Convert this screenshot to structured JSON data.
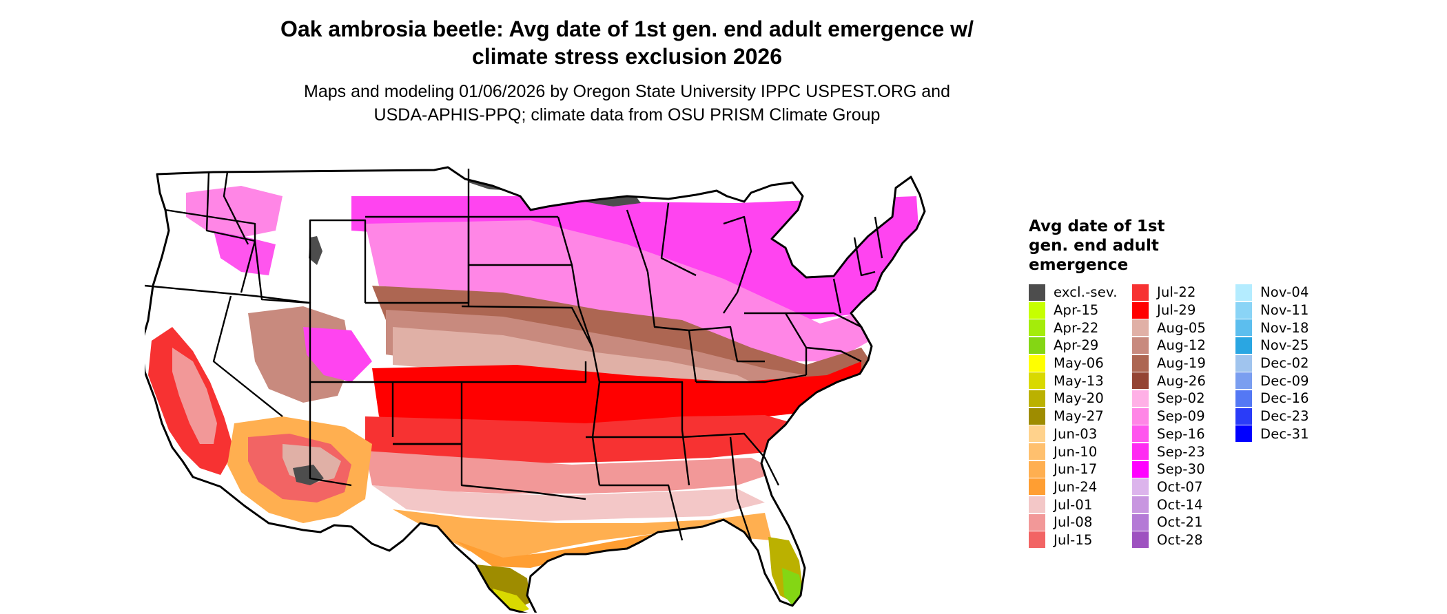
{
  "title": "Oak ambrosia beetle: Avg date of 1st gen. end adult emergence w/\nclimate stress exclusion 2026",
  "subtitle": "Maps and modeling 01/06/2026 by Oregon State University IPPC USPEST.ORG and\nUSDA-APHIS-PPQ; climate data from OSU PRISM Climate Group",
  "map": {
    "region": "Contiguous United States",
    "boundaries": "state outlines",
    "colors": {
      "excluded": "#4d4d4d",
      "no_data": "#ffffff",
      "outline": "#000000"
    }
  },
  "legend": {
    "title": "Avg date of 1st gen. end adult emergence",
    "columns": [
      [
        {
          "label": "excl.-sev.",
          "color": "#4d4d4d"
        },
        {
          "label": "Apr-15",
          "color": "#c6ff00"
        },
        {
          "label": "Apr-22",
          "color": "#a4ec0a"
        },
        {
          "label": "Apr-29",
          "color": "#84d614"
        },
        {
          "label": "May-06",
          "color": "#ffff00"
        },
        {
          "label": "May-13",
          "color": "#d9d900"
        },
        {
          "label": "May-20",
          "color": "#bbb100"
        },
        {
          "label": "May-27",
          "color": "#9e8c00"
        },
        {
          "label": "Jun-03",
          "color": "#ffd28c"
        },
        {
          "label": "Jun-10",
          "color": "#ffc06e"
        },
        {
          "label": "Jun-17",
          "color": "#ffaf50"
        },
        {
          "label": "Jun-24",
          "color": "#ff9e32"
        },
        {
          "label": "Jul-01",
          "color": "#f3c7c7"
        },
        {
          "label": "Jul-08",
          "color": "#f29898"
        },
        {
          "label": "Jul-15",
          "color": "#f26464"
        }
      ],
      [
        {
          "label": "Jul-22",
          "color": "#f73232"
        },
        {
          "label": "Jul-29",
          "color": "#ff0000"
        },
        {
          "label": "Aug-05",
          "color": "#e0b0a6"
        },
        {
          "label": "Aug-12",
          "color": "#c88a7e"
        },
        {
          "label": "Aug-19",
          "color": "#ad6652"
        },
        {
          "label": "Aug-26",
          "color": "#944433"
        },
        {
          "label": "Sep-02",
          "color": "#ffb0e6"
        },
        {
          "label": "Sep-09",
          "color": "#ff86e6"
        },
        {
          "label": "Sep-16",
          "color": "#ff55ee"
        },
        {
          "label": "Sep-23",
          "color": "#ff2bf2"
        },
        {
          "label": "Sep-30",
          "color": "#ff00ff"
        },
        {
          "label": "Oct-07",
          "color": "#dcb4ec"
        },
        {
          "label": "Oct-14",
          "color": "#c896e0"
        },
        {
          "label": "Oct-21",
          "color": "#b47ad6"
        },
        {
          "label": "Oct-28",
          "color": "#9e52c0"
        }
      ],
      [
        {
          "label": "Nov-04",
          "color": "#b4ecff"
        },
        {
          "label": "Nov-11",
          "color": "#8ad4f6"
        },
        {
          "label": "Nov-18",
          "color": "#5cbeee"
        },
        {
          "label": "Nov-25",
          "color": "#2aa6e2"
        },
        {
          "label": "Dec-02",
          "color": "#a0c4ee"
        },
        {
          "label": "Dec-09",
          "color": "#7a9ef0"
        },
        {
          "label": "Dec-16",
          "color": "#5478f4"
        },
        {
          "label": "Dec-23",
          "color": "#2a3cf8"
        },
        {
          "label": "Dec-31",
          "color": "#0000ff"
        }
      ]
    ]
  }
}
